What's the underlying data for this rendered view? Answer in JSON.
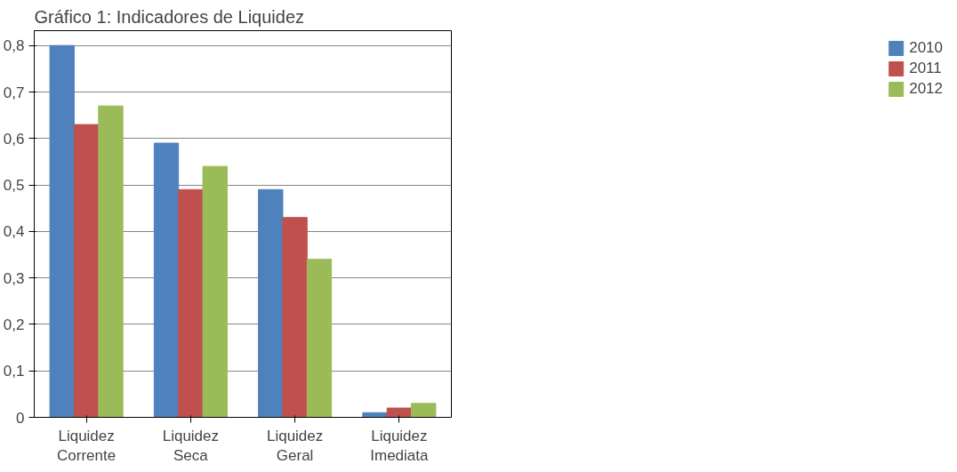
{
  "chart_data": {
    "type": "bar",
    "title": "Gráfico 1: Indicadores de Liquidez",
    "categories": [
      "Liquidez Corrente",
      "Liquidez Seca",
      "Liquidez Geral",
      "Liquidez Imediata"
    ],
    "series": [
      {
        "name": "2010",
        "color": "#4f81bd",
        "values": [
          0.8,
          0.59,
          0.49,
          0.01
        ]
      },
      {
        "name": "2011",
        "color": "#c0504d",
        "values": [
          0.63,
          0.49,
          0.43,
          0.02
        ]
      },
      {
        "name": "2012",
        "color": "#9bbb59",
        "values": [
          0.67,
          0.54,
          0.34,
          0.03
        ]
      }
    ],
    "ylim": [
      0,
      0.8
    ],
    "yticks": [
      {
        "value": 0,
        "label": "0"
      },
      {
        "value": 0.1,
        "label": "0,1"
      },
      {
        "value": 0.2,
        "label": "0,2"
      },
      {
        "value": 0.3,
        "label": "0,3"
      },
      {
        "value": 0.4,
        "label": "0,4"
      },
      {
        "value": 0.5,
        "label": "0,5"
      },
      {
        "value": 0.6,
        "label": "0,6"
      },
      {
        "value": 0.7,
        "label": "0,7"
      },
      {
        "value": 0.8,
        "label": "0,8"
      }
    ],
    "grid": "y",
    "legend": "right"
  }
}
